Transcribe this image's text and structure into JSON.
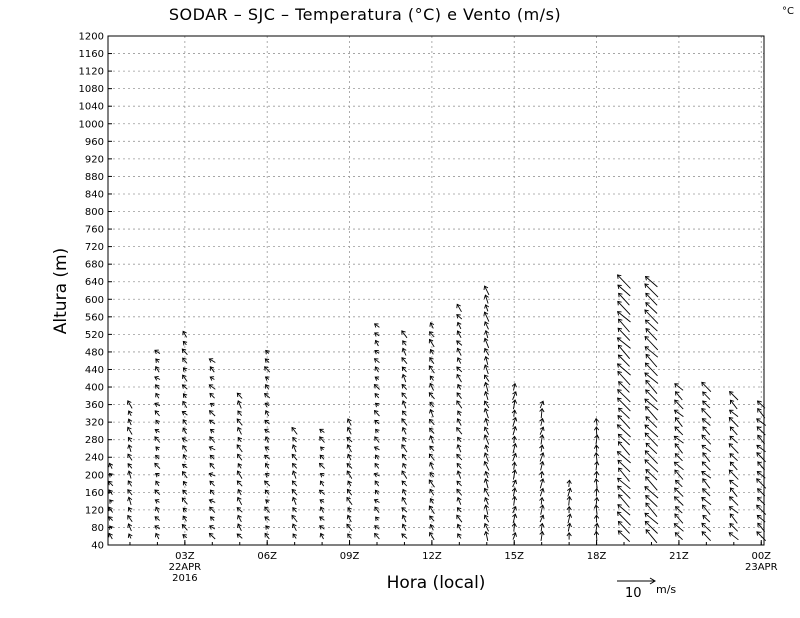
{
  "chart_data": {
    "type": "vector-field",
    "title": "SODAR – SJC – Temperatura (°C) e Vento (m/s)",
    "unit_corner": "°C",
    "xlabel": "Hora (local)",
    "ylabel": "Altura (m)",
    "ylim": [
      40,
      1200
    ],
    "y_ticks": [
      40,
      80,
      120,
      160,
      200,
      240,
      280,
      320,
      360,
      400,
      440,
      480,
      520,
      560,
      600,
      640,
      680,
      720,
      760,
      800,
      840,
      880,
      920,
      960,
      1000,
      1040,
      1080,
      1120,
      1160,
      1200
    ],
    "x_range_hours": [
      0.2,
      24.1
    ],
    "x_ticks": [
      {
        "hour": 3,
        "label": "03Z",
        "sub": [
          "22APR",
          "2016"
        ]
      },
      {
        "hour": 6,
        "label": "06Z",
        "sub": []
      },
      {
        "hour": 9,
        "label": "09Z",
        "sub": []
      },
      {
        "hour": 12,
        "label": "12Z",
        "sub": []
      },
      {
        "hour": 15,
        "label": "15Z",
        "sub": []
      },
      {
        "hour": 18,
        "label": "18Z",
        "sub": []
      },
      {
        "hour": 21,
        "label": "21Z",
        "sub": []
      },
      {
        "hour": 24,
        "label": "00Z",
        "sub": [
          "23APR"
        ]
      }
    ],
    "reference_vector": {
      "value": 10,
      "label": "10",
      "unit": "m/s"
    },
    "profiles": [
      {
        "hour": 0.3,
        "top": 220,
        "u": -0.8,
        "v": 1.0
      },
      {
        "hour": 1.0,
        "top": 360,
        "u": -0.8,
        "v": 1.5
      },
      {
        "hour": 2.0,
        "top": 480,
        "u": -1.0,
        "v": 1.0
      },
      {
        "hour": 3.0,
        "top": 530,
        "u": -1.0,
        "v": 1.2
      },
      {
        "hour": 4.0,
        "top": 460,
        "u": -1.2,
        "v": 1.0
      },
      {
        "hour": 5.0,
        "top": 380,
        "u": -1.0,
        "v": 1.5
      },
      {
        "hour": 6.0,
        "top": 480,
        "u": -1.0,
        "v": 1.0
      },
      {
        "hour": 7.0,
        "top": 300,
        "u": -1.0,
        "v": 1.5
      },
      {
        "hour": 8.0,
        "top": 300,
        "u": -1.0,
        "v": 1.0
      },
      {
        "hour": 9.0,
        "top": 320,
        "u": -1.0,
        "v": 1.5
      },
      {
        "hour": 10.0,
        "top": 540,
        "u": -1.0,
        "v": 1.0
      },
      {
        "hour": 11.0,
        "top": 530,
        "u": -1.0,
        "v": 1.5
      },
      {
        "hour": 12.0,
        "top": 540,
        "u": -1.0,
        "v": 1.5
      },
      {
        "hour": 13.0,
        "top": 580,
        "u": -1.0,
        "v": 1.5
      },
      {
        "hour": 14.0,
        "top": 620,
        "u": -0.8,
        "v": 2.0
      },
      {
        "hour": 15.0,
        "top": 400,
        "u": 0.5,
        "v": 2.0
      },
      {
        "hour": 16.0,
        "top": 360,
        "u": 0.5,
        "v": 2.0
      },
      {
        "hour": 17.0,
        "top": 190,
        "u": 0.3,
        "v": 2.0
      },
      {
        "hour": 18.0,
        "top": 330,
        "u": 0.0,
        "v": 2.0
      },
      {
        "hour": 19.0,
        "top": 640,
        "u": -3.0,
        "v": 3.0
      },
      {
        "hour": 20.0,
        "top": 650,
        "u": -3.0,
        "v": 3.0
      },
      {
        "hour": 21.0,
        "top": 410,
        "u": -2.0,
        "v": 2.0
      },
      {
        "hour": 22.0,
        "top": 410,
        "u": -2.0,
        "v": 2.0
      },
      {
        "hour": 23.0,
        "top": 380,
        "u": -2.0,
        "v": 2.0
      },
      {
        "hour": 24.0,
        "top": 360,
        "u": -2.0,
        "v": 2.0
      }
    ]
  }
}
